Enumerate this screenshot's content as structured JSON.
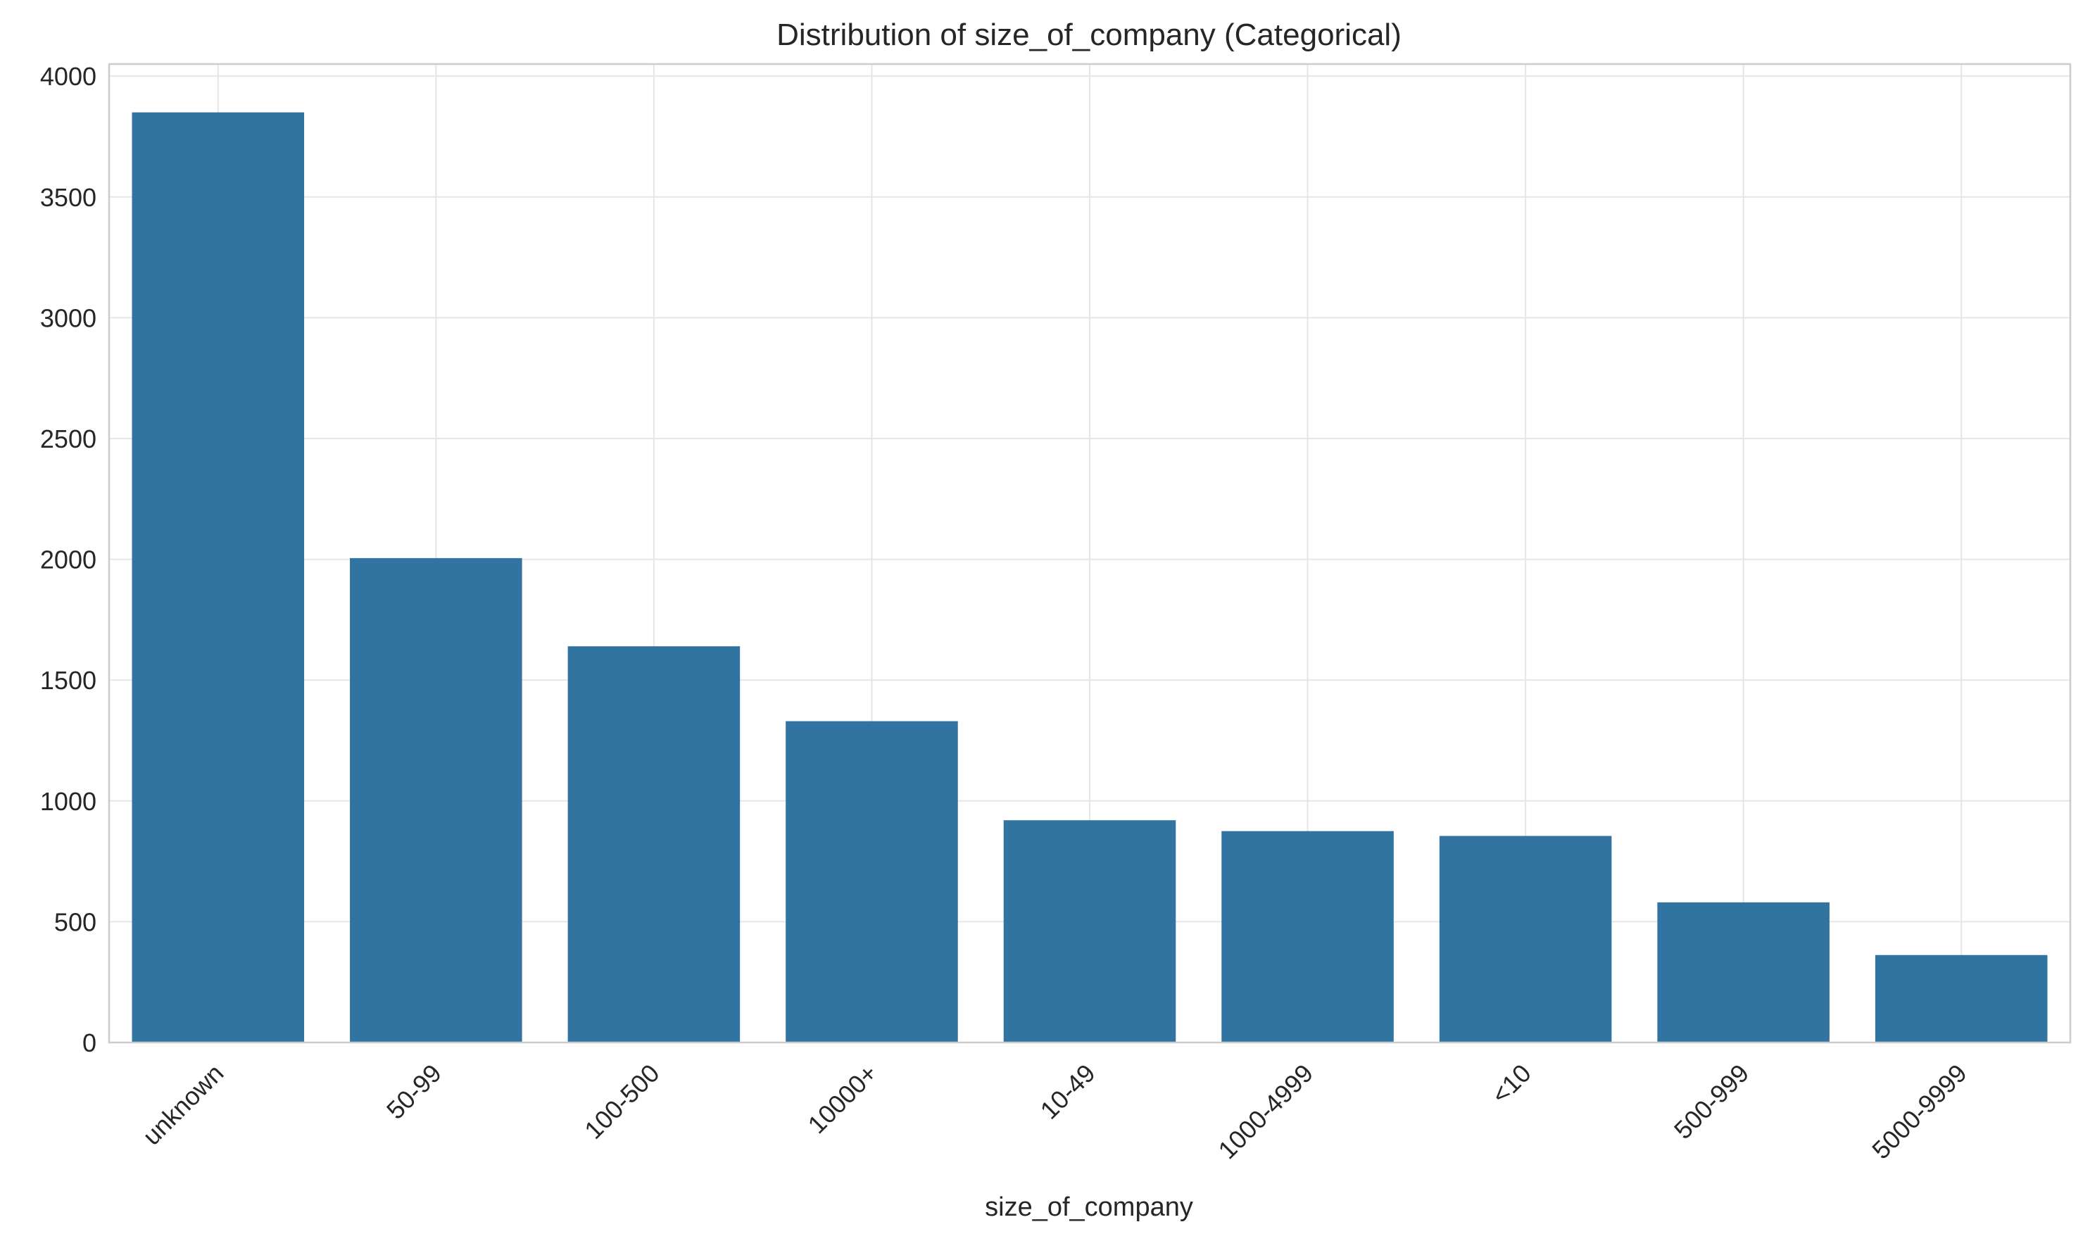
{
  "chart_data": {
    "type": "bar",
    "title": "Distribution of size_of_company (Categorical)",
    "xlabel": "size_of_company",
    "ylabel": "",
    "categories": [
      "unknown",
      "50-99",
      "100-500",
      "10000+",
      "10-49",
      "1000-4999",
      "<10",
      "500-999",
      "5000-9999"
    ],
    "values": [
      3850,
      2005,
      1640,
      1330,
      920,
      875,
      855,
      580,
      362
    ],
    "ylim": [
      0,
      4050
    ],
    "yticks": [
      0,
      500,
      1000,
      1500,
      2000,
      2500,
      3000,
      3500,
      4000
    ],
    "grid": true,
    "bar_color": "#3274a1",
    "grid_color": "#e6e6e6",
    "frame_color": "#cccccc"
  }
}
